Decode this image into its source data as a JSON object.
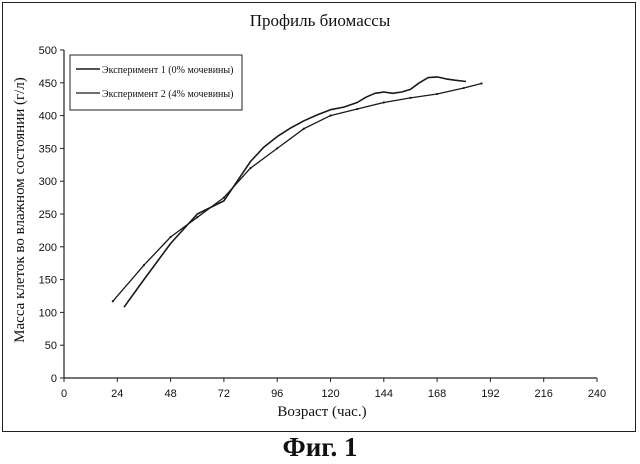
{
  "chart_data": {
    "type": "line",
    "title": "Профиль биомассы",
    "xlabel": "Возраст (час.)",
    "ylabel": "Масса клеток во влажном состоянии (г/л)",
    "xlim": [
      0,
      240
    ],
    "ylim": [
      0,
      500
    ],
    "xticks": [
      "0",
      "24",
      "48",
      "72",
      "96",
      "120",
      "144",
      "168",
      "192",
      "216",
      "240"
    ],
    "yticks": [
      "0",
      "50",
      "100",
      "150",
      "200",
      "250",
      "300",
      "350",
      "400",
      "450",
      "500"
    ],
    "grid": false,
    "legend": "top-left",
    "series": [
      {
        "name": "Эксперимент 1 (0% мочевины)",
        "x": [
          27,
          36,
          48,
          60,
          72,
          78,
          84,
          90,
          96,
          102,
          108,
          114,
          120,
          126,
          132,
          136,
          140,
          144,
          148,
          152,
          156,
          160,
          164,
          168,
          172,
          176,
          181
        ],
        "y": [
          108,
          150,
          205,
          250,
          270,
          300,
          330,
          352,
          368,
          381,
          392,
          401,
          409,
          413,
          420,
          428,
          434,
          436,
          434,
          436,
          440,
          450,
          458,
          459,
          456,
          454,
          452
        ]
      },
      {
        "name": "Эксперимент 2 (4% мочевины)",
        "x": [
          22,
          36,
          48,
          60,
          72,
          84,
          96,
          108,
          120,
          132,
          144,
          156,
          168,
          180,
          188
        ],
        "y": [
          117,
          172,
          215,
          245,
          275,
          320,
          350,
          380,
          400,
          410,
          420,
          427,
          433,
          442,
          449
        ]
      }
    ]
  },
  "caption": "Фиг. 1"
}
